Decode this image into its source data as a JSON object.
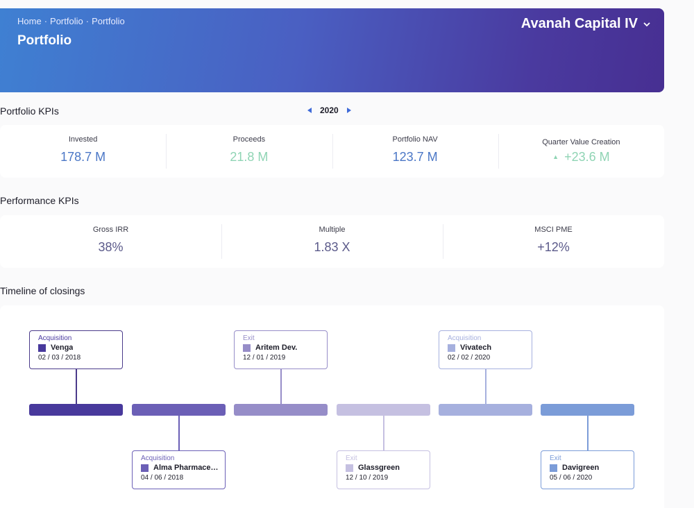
{
  "header": {
    "breadcrumb": [
      "Home",
      "Portfolio",
      "Portfolio"
    ],
    "title": "Portfolio",
    "fund": "Avanah Capital IV"
  },
  "portfolio_kpis": {
    "title": "Portfolio KPIs",
    "year": "2020",
    "items": [
      {
        "label": "Invested",
        "value": "178.7 M"
      },
      {
        "label": "Proceeds",
        "value": "21.8 M"
      },
      {
        "label": "Portfolio NAV",
        "value": "123.7 M"
      },
      {
        "label": "Quarter Value Creation",
        "value": "+23.6 M"
      }
    ]
  },
  "performance_kpis": {
    "title": "Performance KPIs",
    "items": [
      {
        "label": "Gross IRR",
        "value": "38%"
      },
      {
        "label": "Multiple",
        "value": "1.83 X"
      },
      {
        "label": "MSCI PME",
        "value": "+12%"
      }
    ]
  },
  "timeline": {
    "title": "Timeline of closings",
    "events": [
      {
        "type": "Acquisition",
        "name": "Venga",
        "date": "02 / 03 / 2018",
        "color": "#48399c",
        "border": "#4a3a8a",
        "type_color": "#4a3aa0"
      },
      {
        "type": "Acquisition",
        "name": "Alma Pharmaceuticals",
        "date": "04 / 06 / 2018",
        "color": "#6b5fb6",
        "border": "#6b5fb6",
        "type_color": "#6b5fb6"
      },
      {
        "type": "Exit",
        "name": "Aritem Dev.",
        "date": "12 / 01 / 2019",
        "color": "#968dc8",
        "border": "#968dc8",
        "type_color": "#968dc8"
      },
      {
        "type": "Exit",
        "name": "Glassgreen",
        "date": "12 / 10 / 2019",
        "color": "#c5c0e1",
        "border": "#c5c0e1",
        "type_color": "#c5c0e1"
      },
      {
        "type": "Acquisition",
        "name": "Vivatech",
        "date": "02 / 02 / 2020",
        "color": "#a6b0de",
        "border": "#a6b0de",
        "type_color": "#a6b0de"
      },
      {
        "type": "Exit",
        "name": "Davigreen",
        "date": "05 / 06 / 2020",
        "color": "#7b9cd8",
        "border": "#7b9cd8",
        "type_color": "#7b9cd8"
      }
    ]
  }
}
